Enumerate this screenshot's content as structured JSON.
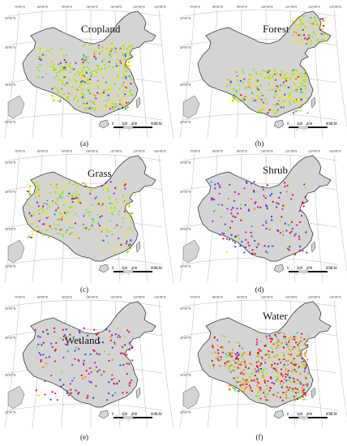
{
  "lon_labels": [
    "70°0'0\"E",
    "80°0'0\"E",
    "90°0'0\"E",
    "100°0'0\"E",
    "110°0'0\"E",
    "120°0'0\"E",
    "130°0'0\"E"
  ],
  "lat_labels": [
    "50°0'0\"N",
    "40°0'0\"N",
    "30°0'0\"N",
    "20°0'0\"N"
  ],
  "scale": {
    "ticks": [
      "0",
      "200",
      "400",
      "800"
    ],
    "unit": "KM"
  },
  "colors": {
    "land": "#d4d4d4",
    "outline": "#333333",
    "grid": "#9a9a9a",
    "sea_islands": "#d4d4d4"
  },
  "point_colors": [
    "#f5e51c",
    "#9be22a",
    "#e8152b",
    "#c81fd8",
    "#2f4fe0",
    "#f08a16",
    "#22b0d8"
  ],
  "panels": [
    {
      "title": "Cropland",
      "caption": "(a)",
      "density": "east-heavy",
      "dominant": [
        "#f5e51c",
        "#9be22a"
      ]
    },
    {
      "title": "Forest",
      "caption": "(b)",
      "density": "south-northeast",
      "dominant": [
        "#9be22a",
        "#f5e51c"
      ]
    },
    {
      "title": "Grass",
      "caption": "(c)",
      "density": "west-north",
      "dominant": [
        "#9be22a",
        "#f5e51c"
      ]
    },
    {
      "title": "Shrub",
      "caption": "(d)",
      "density": "sparse",
      "dominant": [
        "#e8152b",
        "#c81fd8",
        "#2f4fe0"
      ]
    },
    {
      "title": "Wetland",
      "caption": "(e)",
      "density": "sparse",
      "dominant": [
        "#e8152b",
        "#c81fd8",
        "#2f4fe0"
      ]
    },
    {
      "title": "Water",
      "caption": "(f)",
      "density": "east-heavy",
      "dominant": [
        "#e8152b",
        "#9be22a",
        "#f08a16"
      ]
    }
  ]
}
